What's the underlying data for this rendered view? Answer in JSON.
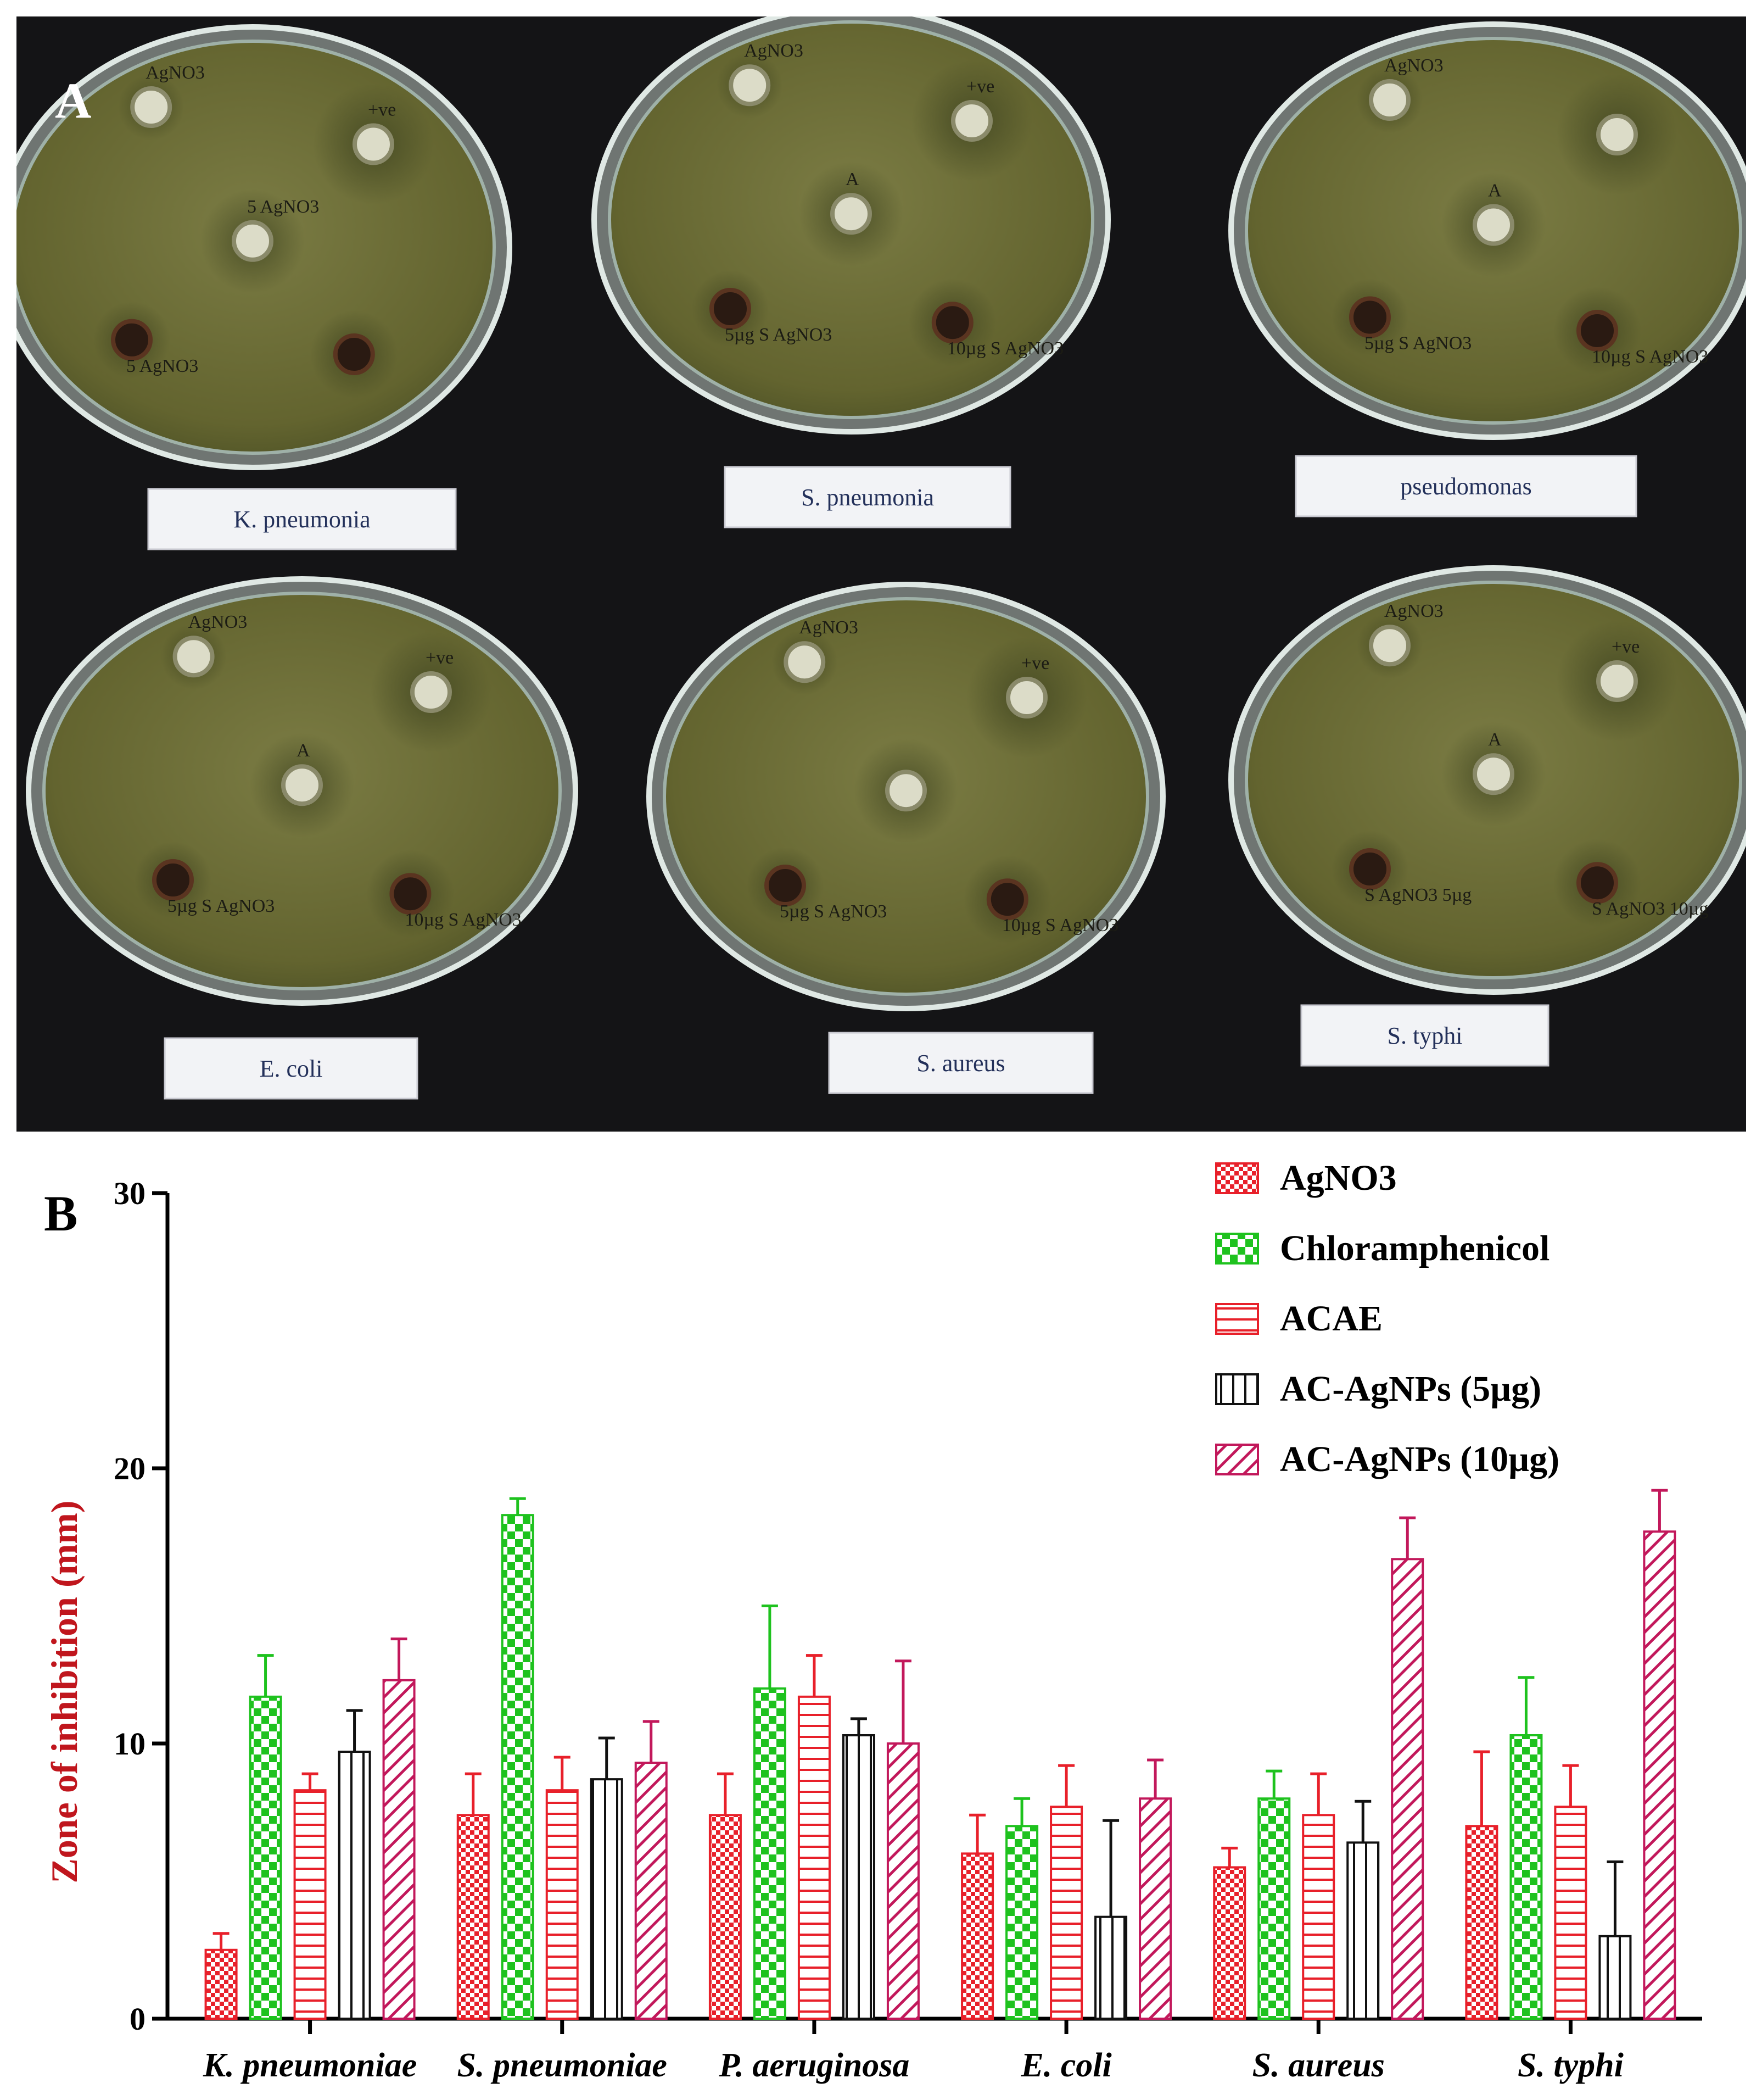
{
  "panel_a": {
    "letter": "A",
    "plates": [
      {
        "label": "K. pneumonia",
        "wells": [
          "AgNO3",
          "+ve",
          "5 AgNO3",
          "5 AgNO3",
          ""
        ]
      },
      {
        "label": "S. pneumonia",
        "wells": [
          "AgNO3",
          "+ve",
          "A",
          "5µg S AgNO3",
          "10µg S AgNO3"
        ]
      },
      {
        "label": "pseudomonas",
        "wells": [
          "AgNO3",
          "",
          "A",
          "5µg S AgNO3",
          "10µg S AgNO3"
        ]
      },
      {
        "label": "E. coli",
        "wells": [
          "AgNO3",
          "+ve",
          "A",
          "5µg S AgNO3",
          "10µg S AgNO3"
        ]
      },
      {
        "label": "S. aureus",
        "wells": [
          "AgNO3",
          "+ve",
          "",
          "5µg S AgNO3",
          "10µg S AgNO3"
        ]
      },
      {
        "label": "S. typhi",
        "wells": [
          "AgNO3",
          "+ve",
          "A",
          "S AgNO3 5µg",
          "S AgNO3 10µg"
        ]
      }
    ]
  },
  "panel_b": {
    "letter": "B"
  },
  "colors": {
    "red": "#e8202a",
    "green": "#1ec21e",
    "black": "#111111",
    "magenta": "#c2185b",
    "axis_label": "#c0161d",
    "agar": "#6b6c3a",
    "background_photo": "#141416"
  },
  "chart_data": {
    "type": "bar",
    "title": "",
    "xlabel": "",
    "ylabel": "Zone of inhibition (mm)",
    "ylim": [
      0,
      30
    ],
    "yticks": [
      0,
      10,
      20,
      30
    ],
    "grid": false,
    "legend_position": "top-right",
    "categories": [
      "K. pneumoniae",
      "S. pneumoniae",
      "P. aeruginosa",
      "E. coli",
      "S. aureus",
      "S. typhi"
    ],
    "series": [
      {
        "name": "AgNO3",
        "pattern": "checker-red",
        "values": [
          2.5,
          7.4,
          7.4,
          6.0,
          5.5,
          7.0
        ],
        "errors": [
          0.6,
          1.5,
          1.5,
          1.4,
          0.7,
          2.7
        ]
      },
      {
        "name": "Chloramphenicol",
        "pattern": "checker-green",
        "values": [
          11.7,
          18.3,
          12.0,
          7.0,
          8.0,
          10.3
        ],
        "errors": [
          1.5,
          0.6,
          3.0,
          1.0,
          1.0,
          2.1
        ]
      },
      {
        "name": "ACAE",
        "pattern": "horizontal-red",
        "values": [
          8.3,
          8.3,
          11.7,
          7.7,
          7.4,
          7.7
        ],
        "errors": [
          0.6,
          1.2,
          1.5,
          1.5,
          1.5,
          1.5
        ]
      },
      {
        "name": "AC-AgNPs (5µg)",
        "pattern": "vertical-black",
        "values": [
          9.7,
          8.7,
          10.3,
          3.7,
          6.4,
          3.0
        ],
        "errors": [
          1.5,
          1.5,
          0.6,
          3.5,
          1.5,
          2.7
        ]
      },
      {
        "name": "AC-AgNPs (10µg)",
        "pattern": "diagonal-magenta",
        "values": [
          12.3,
          9.3,
          10.0,
          8.0,
          16.7,
          17.7
        ],
        "errors": [
          1.5,
          1.5,
          3.0,
          1.4,
          1.5,
          1.5
        ]
      }
    ]
  }
}
